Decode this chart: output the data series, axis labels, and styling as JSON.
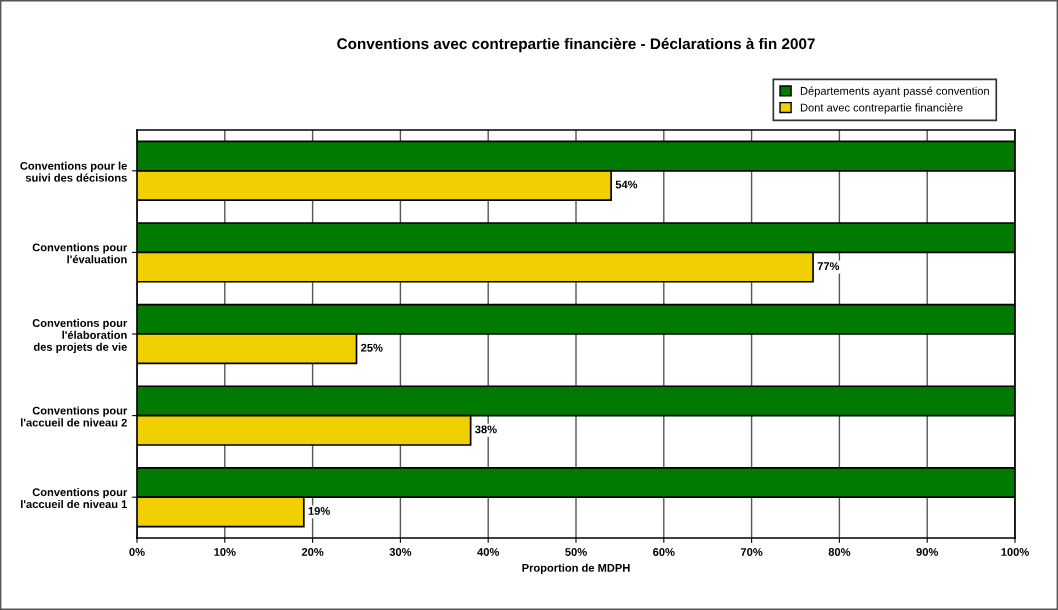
{
  "chart_data": {
    "type": "bar",
    "orientation": "horizontal",
    "title": "Conventions avec contrepartie financière - Déclarations à fin 2007",
    "xlabel": "Proportion de MDPH",
    "categories": [
      "Conventions pour le\nsuivi des décisions",
      "Conventions pour\nl'évaluation",
      "Conventions pour\nl'élaboration\ndes projets de vie",
      "Conventions pour\nl'accueil de niveau 2",
      "Conventions pour\nl'accueil de niveau 1"
    ],
    "series": [
      {
        "name": "Départements ayant passé convention",
        "color": "#007a00",
        "values": [
          100,
          100,
          100,
          100,
          100
        ]
      },
      {
        "name": "Dont avec contrepartie financière",
        "color": "#f0d000",
        "values": [
          54,
          77,
          25,
          38,
          19
        ],
        "value_labels": [
          "54%",
          "77%",
          "25%",
          "38%",
          "19%"
        ]
      }
    ],
    "xlim": [
      0,
      100
    ],
    "xticks": [
      {
        "value": 0,
        "label": "0%"
      },
      {
        "value": 10,
        "label": "10%"
      },
      {
        "value": 20,
        "label": "20%"
      },
      {
        "value": 30,
        "label": "30%"
      },
      {
        "value": 40,
        "label": "40%"
      },
      {
        "value": 50,
        "label": "50%"
      },
      {
        "value": 60,
        "label": "60%"
      },
      {
        "value": 70,
        "label": "70%"
      },
      {
        "value": 80,
        "label": "80%"
      },
      {
        "value": 90,
        "label": "90%"
      },
      {
        "value": 100,
        "label": "100%"
      }
    ],
    "grid": "x",
    "legend": "top right"
  }
}
